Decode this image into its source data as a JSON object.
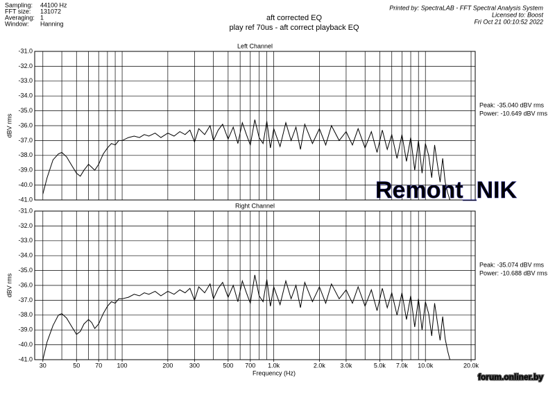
{
  "header": {
    "settings": [
      {
        "label": "Sampling:",
        "value": "44100 Hz"
      },
      {
        "label": "FFT size:",
        "value": "131072"
      },
      {
        "label": "Averaging:",
        "value": "1"
      },
      {
        "label": "Window:",
        "value": "Hanning"
      }
    ],
    "title": "aft corrected EQ",
    "subtitle": "play ref 70us - aft correct playback EQ",
    "printed_by": "Printed by: SpectraLAB - FFT Spectral Analysis System",
    "licensed_to": "Licensed to: Boost",
    "date": "Fri Oct 21 00:10:52 2022"
  },
  "watermark": "Remont_NIK",
  "credit": "forum.onliner.by",
  "chart_data": [
    {
      "type": "line",
      "title": "Left Channel",
      "ylabel": "dBV rms",
      "color": "#000000",
      "log_x": true,
      "annotations": [
        "Peak: -35.040 dBV rms",
        "Power: -10.649 dBV rms"
      ],
      "xlim": [
        26.5,
        21300
      ],
      "ylim": [
        -41,
        -31
      ],
      "yticks": [
        {
          "value": -31,
          "label": "-31.0"
        },
        {
          "value": -32,
          "label": "-32.0"
        },
        {
          "value": -33,
          "label": "-33.0"
        },
        {
          "value": -34,
          "label": "-34.0"
        },
        {
          "value": -35,
          "label": "-35.0"
        },
        {
          "value": -36,
          "label": "-36.0"
        },
        {
          "value": -37,
          "label": "-37.0"
        },
        {
          "value": -38,
          "label": "-38.0"
        },
        {
          "value": -39,
          "label": "-39.0"
        },
        {
          "value": -40,
          "label": "-40.0"
        },
        {
          "value": -41,
          "label": "-41.0"
        }
      ],
      "xgrid": [
        30,
        40,
        50,
        60,
        70,
        80,
        90,
        100,
        200,
        300,
        400,
        500,
        600,
        700,
        800,
        900,
        1000,
        2000,
        3000,
        4000,
        5000,
        6000,
        7000,
        8000,
        9000,
        10000,
        20000
      ],
      "x": [
        30,
        32,
        35,
        38,
        40,
        43,
        46,
        50,
        53,
        56,
        60,
        63,
        66,
        70,
        75,
        80,
        85,
        90,
        95,
        100,
        110,
        120,
        130,
        140,
        150,
        165,
        180,
        200,
        220,
        240,
        260,
        280,
        300,
        320,
        350,
        380,
        400,
        430,
        460,
        500,
        540,
        580,
        620,
        660,
        700,
        750,
        800,
        850,
        900,
        950,
        1000,
        1100,
        1200,
        1300,
        1400,
        1500,
        1600,
        1800,
        2000,
        2200,
        2400,
        2700,
        3000,
        3300,
        3600,
        4000,
        4400,
        4800,
        5200,
        5600,
        6000,
        6500,
        7000,
        7500,
        8000,
        8500,
        9000,
        9500,
        10000,
        10500,
        11000,
        11500,
        12000,
        12500,
        13000,
        13500,
        14000,
        14500
      ],
      "values": [
        -40.6,
        -39.5,
        -38.3,
        -37.9,
        -37.8,
        -38.1,
        -38.6,
        -39.2,
        -39.4,
        -39.0,
        -38.6,
        -38.8,
        -39.0,
        -38.6,
        -37.9,
        -37.5,
        -37.2,
        -37.3,
        -37.0,
        -37.0,
        -36.8,
        -36.7,
        -36.8,
        -36.6,
        -36.7,
        -36.5,
        -36.8,
        -36.5,
        -36.7,
        -36.4,
        -36.6,
        -36.3,
        -37.1,
        -36.2,
        -36.6,
        -36.0,
        -37.0,
        -36.3,
        -35.9,
        -36.9,
        -36.1,
        -37.2,
        -35.8,
        -36.6,
        -37.3,
        -35.6,
        -36.8,
        -37.2,
        -35.7,
        -37.5,
        -36.2,
        -37.4,
        -35.8,
        -37.0,
        -36.1,
        -37.6,
        -35.9,
        -37.2,
        -36.2,
        -37.3,
        -36.0,
        -37.0,
        -36.4,
        -37.3,
        -36.2,
        -37.5,
        -36.4,
        -37.8,
        -36.3,
        -37.6,
        -36.6,
        -38.2,
        -36.6,
        -38.4,
        -36.8,
        -39.0,
        -37.0,
        -39.2,
        -37.2,
        -38.0,
        -39.5,
        -37.3,
        -38.6,
        -39.8,
        -38.2,
        -39.8,
        -40.5,
        -41.0
      ]
    },
    {
      "type": "line",
      "title": "Right Channel",
      "ylabel": "dBV rms",
      "xlabel": "Frequency (Hz)",
      "color": "#000000",
      "log_x": true,
      "annotations": [
        "Peak: -35.074 dBV rms",
        "Power: -10.688 dBV rms"
      ],
      "xlim": [
        26.5,
        21300
      ],
      "ylim": [
        -41,
        -31
      ],
      "yticks": [
        {
          "value": -31,
          "label": "-31.0"
        },
        {
          "value": -32,
          "label": "-32.0"
        },
        {
          "value": -33,
          "label": "-33.0"
        },
        {
          "value": -34,
          "label": "-34.0"
        },
        {
          "value": -35,
          "label": "-35.0"
        },
        {
          "value": -36,
          "label": "-36.0"
        },
        {
          "value": -37,
          "label": "-37.0"
        },
        {
          "value": -38,
          "label": "-38.0"
        },
        {
          "value": -39,
          "label": "-39.0"
        },
        {
          "value": -40,
          "label": "-40.0"
        },
        {
          "value": -41,
          "label": "-41.0"
        }
      ],
      "xgrid": [
        30,
        40,
        50,
        60,
        70,
        80,
        90,
        100,
        200,
        300,
        400,
        500,
        600,
        700,
        800,
        900,
        1000,
        2000,
        3000,
        4000,
        5000,
        6000,
        7000,
        8000,
        9000,
        10000,
        20000
      ],
      "xticks": [
        30,
        50,
        70,
        100,
        200,
        300,
        500,
        700,
        {
          "value": 1000,
          "label": "1.0k"
        },
        {
          "value": 2000,
          "label": "2.0k"
        },
        {
          "value": 3000,
          "label": "3.0k"
        },
        {
          "value": 5000,
          "label": "5.0k"
        },
        {
          "value": 7000,
          "label": "7.0k"
        },
        {
          "value": 10000,
          "label": "10.0k"
        },
        {
          "value": 20000,
          "label": "20.0k"
        }
      ],
      "x": [
        30,
        32,
        35,
        38,
        40,
        43,
        46,
        50,
        53,
        56,
        60,
        63,
        66,
        70,
        75,
        80,
        85,
        90,
        95,
        100,
        110,
        120,
        130,
        140,
        150,
        165,
        180,
        200,
        220,
        240,
        260,
        280,
        300,
        320,
        350,
        380,
        400,
        430,
        460,
        500,
        540,
        580,
        620,
        660,
        700,
        750,
        800,
        850,
        900,
        950,
        1000,
        1100,
        1200,
        1300,
        1400,
        1500,
        1600,
        1800,
        2000,
        2200,
        2400,
        2700,
        3000,
        3300,
        3600,
        4000,
        4400,
        4800,
        5200,
        5600,
        6000,
        6500,
        7000,
        7500,
        8000,
        8500,
        9000,
        9500,
        10000,
        10500,
        11000,
        11500,
        12000,
        12500,
        13000,
        13500,
        14000,
        14500
      ],
      "values": [
        -41.0,
        -39.8,
        -38.7,
        -38.0,
        -37.9,
        -38.2,
        -38.7,
        -39.3,
        -39.1,
        -38.6,
        -38.3,
        -38.5,
        -38.9,
        -38.6,
        -37.9,
        -37.4,
        -37.1,
        -37.2,
        -36.9,
        -36.9,
        -36.8,
        -36.6,
        -36.7,
        -36.5,
        -36.6,
        -36.4,
        -36.7,
        -36.4,
        -36.6,
        -36.3,
        -36.5,
        -36.2,
        -37.0,
        -36.1,
        -36.5,
        -35.9,
        -36.9,
        -36.2,
        -35.8,
        -36.8,
        -36.0,
        -37.1,
        -35.7,
        -36.5,
        -37.2,
        -35.3,
        -36.7,
        -37.1,
        -35.6,
        -37.4,
        -36.1,
        -37.3,
        -35.7,
        -36.9,
        -36.0,
        -37.5,
        -35.8,
        -37.1,
        -36.1,
        -37.2,
        -35.9,
        -36.9,
        -36.3,
        -37.2,
        -36.1,
        -37.4,
        -36.3,
        -37.7,
        -36.2,
        -37.5,
        -36.5,
        -38.0,
        -36.5,
        -38.3,
        -36.7,
        -38.8,
        -36.9,
        -39.0,
        -37.1,
        -37.9,
        -39.4,
        -37.2,
        -38.5,
        -39.7,
        -38.1,
        -39.6,
        -40.4,
        -41.0
      ]
    }
  ]
}
